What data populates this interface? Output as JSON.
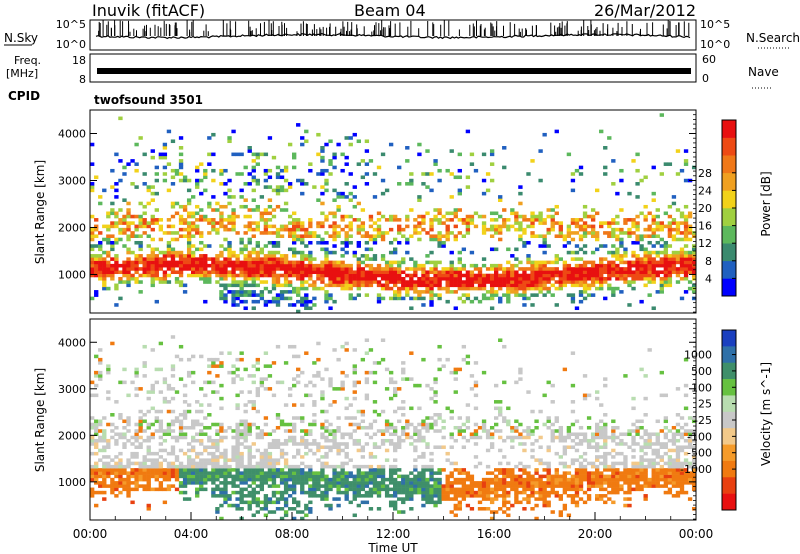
{
  "header": {
    "station": "Inuvik (fitACF)",
    "beam": "Beam 04",
    "date": "26/Mar/2012"
  },
  "strips": {
    "nsky_label": "N.Sky",
    "nsky_ticks": [
      "10^5",
      "10^0"
    ],
    "nsearch_label": "N.Search",
    "nsearch_ticks": [
      "10^5",
      "10^0"
    ],
    "freq_label_line1": "Freq.",
    "freq_label_line2": "[MHz]",
    "freq_ticks": [
      "18",
      "8"
    ],
    "nave_label": "Nave",
    "nave_ticks": [
      "60",
      "0"
    ],
    "cpid_label": "CPID",
    "cpid_value": "twofsound 3501"
  },
  "chart_data": [
    {
      "type": "heatmap",
      "parameter": "Power",
      "ylabel": "Slant Range [km]",
      "xlabel": "Time UT",
      "x_ticks": [
        "00:00",
        "04:00",
        "08:00",
        "12:00",
        "16:00",
        "20:00",
        "00:00"
      ],
      "x_range_hours": [
        0,
        24
      ],
      "y_ticks": [
        1000,
        2000,
        3000,
        4000
      ],
      "ylim": [
        180,
        4500
      ],
      "colorbar_label": "Power [dB]",
      "colorbar_ticks": [
        "4",
        "8",
        "12",
        "16",
        "20",
        "24",
        "28"
      ],
      "colorbar_colors": [
        "#0000ff",
        "#2060c0",
        "#3a8a6e",
        "#5cb85c",
        "#a0d040",
        "#f2d21a",
        "#f0a020",
        "#f07818",
        "#ee4a14",
        "#e81010"
      ],
      "grid": false
    },
    {
      "type": "heatmap",
      "parameter": "Velocity",
      "ylabel": "Slant Range [km]",
      "xlabel": "Time UT",
      "x_ticks": [
        "00:00",
        "04:00",
        "08:00",
        "12:00",
        "16:00",
        "20:00",
        "00:00"
      ],
      "x_range_hours": [
        0,
        24
      ],
      "y_ticks": [
        1000,
        2000,
        3000,
        4000
      ],
      "ylim": [
        180,
        4500
      ],
      "colorbar_label": "Velocity [m s^-1]",
      "colorbar_ticks": [
        "1000",
        "500",
        "100",
        "25",
        "-25",
        "-100",
        "-500",
        "-1000"
      ],
      "colorbar_colors": [
        "#1a3fbf",
        "#2f70a8",
        "#3f8f6a",
        "#66c140",
        "#b8ddb0",
        "#c8c8c8",
        "#f2c98a",
        "#f59b2a",
        "#f07a10",
        "#e84010",
        "#e81010"
      ],
      "grid": false
    }
  ]
}
